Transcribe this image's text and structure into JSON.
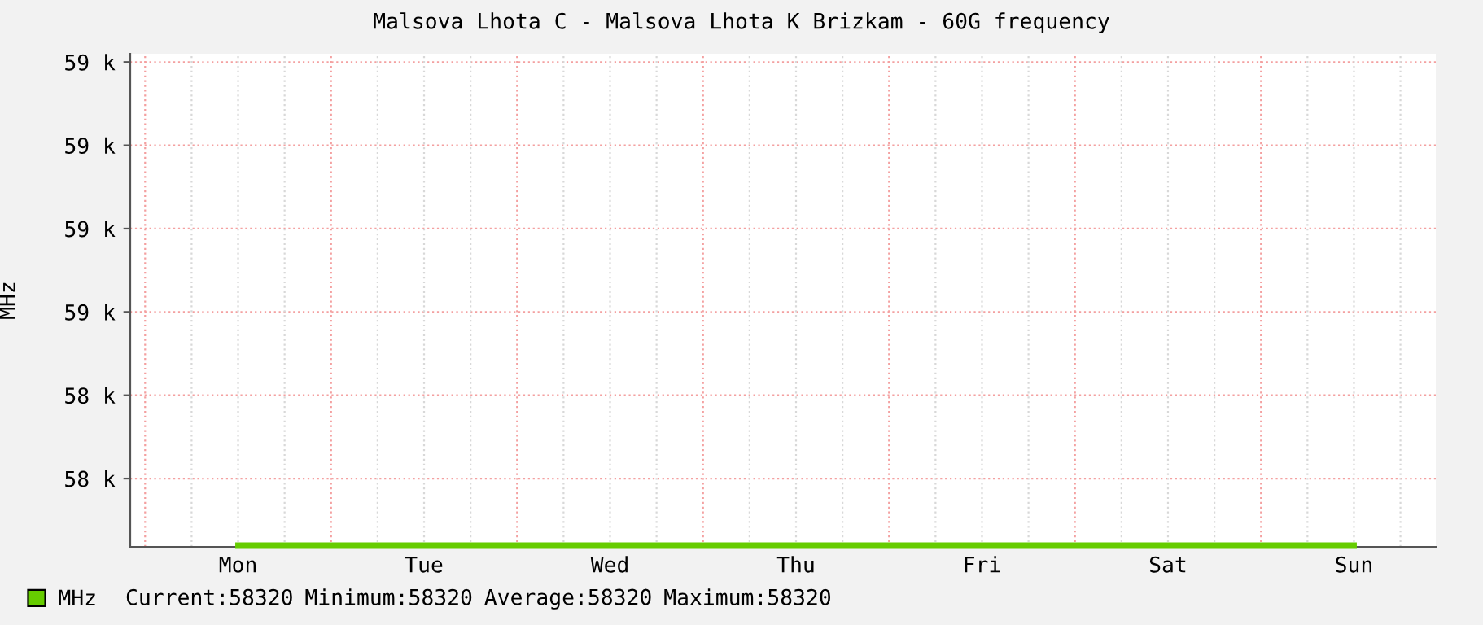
{
  "chart_data": {
    "type": "line",
    "title": "Malsova Lhota C - Malsova Lhota K Brizkam - 60G frequency",
    "ylabel": "MHz",
    "categories": [
      "Mon",
      "Tue",
      "Wed",
      "Thu",
      "Fri",
      "Sat",
      "Sun"
    ],
    "series": [
      {
        "name": "MHz",
        "color": "#66cc00",
        "values": [
          58320,
          58320,
          58320,
          58320,
          58320,
          58320,
          58320
        ]
      }
    ],
    "ylim": [
      58318,
      58910
    ],
    "yticks": [
      {
        "value": 58400,
        "label": "58 k"
      },
      {
        "value": 58500,
        "label": "58 k"
      },
      {
        "value": 58600,
        "label": "59 k"
      },
      {
        "value": 58700,
        "label": "59 k"
      },
      {
        "value": 58800,
        "label": "59 k"
      },
      {
        "value": 58900,
        "label": "59 k"
      }
    ],
    "grid": true,
    "legend": "bottom left",
    "annotations": [
      "Current:58320",
      "Minimum:58320",
      "Average:58320",
      "Maximum:58320"
    ]
  }
}
